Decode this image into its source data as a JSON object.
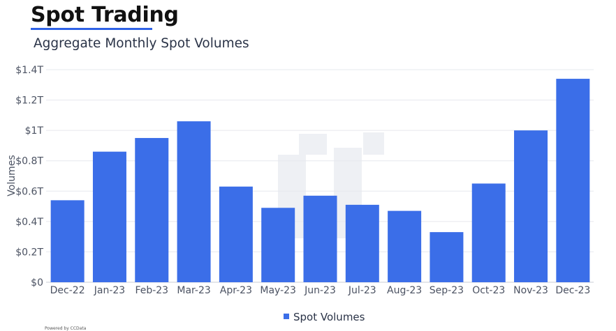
{
  "header": {
    "title": "Spot Trading",
    "subtitle": "Aggregate Monthly Spot Volumes"
  },
  "footer": {
    "credit": "Powered by CCData"
  },
  "colors": {
    "bar": "#3b6ee8",
    "accent": "#2f62e6",
    "grid": "#e6e8ee",
    "watermark": "#eef0f4"
  },
  "chart_data": {
    "type": "bar",
    "title": "",
    "xlabel": "",
    "ylabel": "Volumes",
    "categories": [
      "Dec-22",
      "Jan-23",
      "Feb-23",
      "Mar-23",
      "Apr-23",
      "May-23",
      "Jun-23",
      "Jul-23",
      "Aug-23",
      "Sep-23",
      "Oct-23",
      "Nov-23",
      "Dec-23"
    ],
    "series": [
      {
        "name": "Spot Volumes",
        "values": [
          0.54,
          0.86,
          0.95,
          1.06,
          0.63,
          0.49,
          0.57,
          0.51,
          0.47,
          0.33,
          0.65,
          1.0,
          1.34
        ]
      }
    ],
    "ylim": [
      0,
      1.4
    ],
    "yticks": [
      0,
      0.2,
      0.4,
      0.6,
      0.8,
      1.0,
      1.2,
      1.4
    ],
    "ytick_labels": [
      "$0",
      "$0.2T",
      "$0.4T",
      "$0.6T",
      "$0.8T",
      "$1T",
      "$1.2T",
      "$1.4T"
    ],
    "grid": true,
    "legend": "bottom-center",
    "units": "trillions USD"
  }
}
